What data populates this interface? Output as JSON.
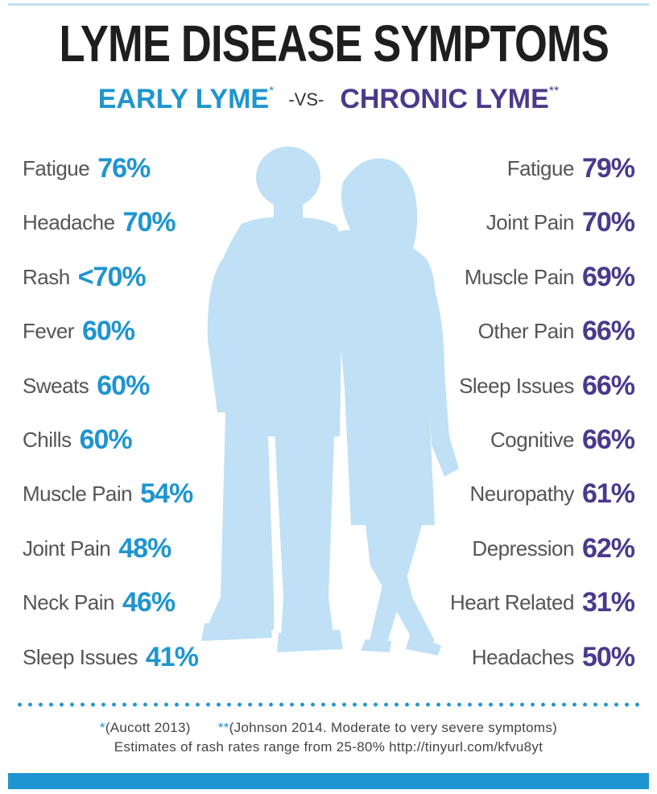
{
  "title": "LYME DISEASE SYMPTOMS",
  "subtitle": {
    "early": "EARLY LYME",
    "early_mark": "*",
    "vs": "-VS-",
    "chronic": "CHRONIC LYME",
    "chronic_mark": "**"
  },
  "early_symptoms": [
    {
      "name": "Fatigue",
      "percent": "76%"
    },
    {
      "name": "Headache",
      "percent": "70%"
    },
    {
      "name": "Rash",
      "percent": "<70%"
    },
    {
      "name": "Fever",
      "percent": "60%"
    },
    {
      "name": "Sweats",
      "percent": "60%"
    },
    {
      "name": "Chills",
      "percent": "60%"
    },
    {
      "name": "Muscle Pain",
      "percent": "54%"
    },
    {
      "name": "Joint Pain",
      "percent": "48%"
    },
    {
      "name": "Neck Pain",
      "percent": "46%"
    },
    {
      "name": "Sleep Issues",
      "percent": "41%"
    }
  ],
  "chronic_symptoms": [
    {
      "name": "Fatigue",
      "percent": "79%"
    },
    {
      "name": "Joint Pain",
      "percent": "70%"
    },
    {
      "name": "Muscle Pain",
      "percent": "69%"
    },
    {
      "name": "Other Pain",
      "percent": "66%"
    },
    {
      "name": "Sleep Issues",
      "percent": "66%"
    },
    {
      "name": "Cognitive",
      "percent": "66%"
    },
    {
      "name": "Neuropathy",
      "percent": "61%"
    },
    {
      "name": "Depression",
      "percent": "62%"
    },
    {
      "name": "Heart Related",
      "percent": "31%"
    },
    {
      "name": "Headaches",
      "percent": "50%"
    }
  ],
  "footnotes": {
    "early_mark": "*",
    "early_source": "(Aucott 2013)",
    "chronic_mark": "**",
    "chronic_source": "(Johnson 2014. Moderate to very severe symptoms)",
    "rash_note": "Estimates of rash rates range from 25-80% http://tinyurl.com/kfvu8yt"
  },
  "colors": {
    "early": "#1e95d0",
    "chronic": "#4a3a8c",
    "silhouette": "#bfe0f5",
    "title": "#1e1e1e"
  },
  "icons": {
    "silhouette": "couple-silhouette-icon"
  }
}
